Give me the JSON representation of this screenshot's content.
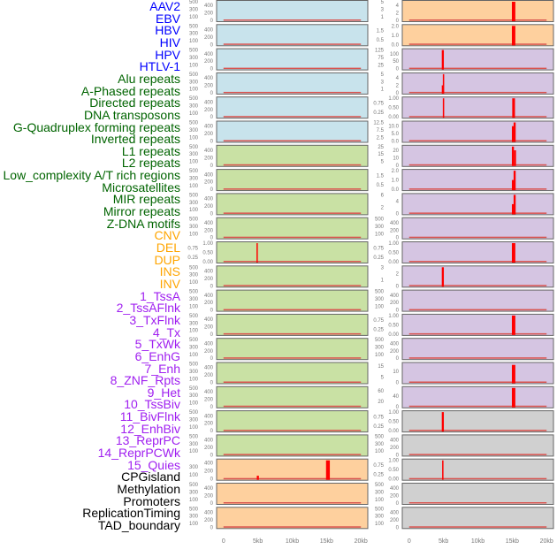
{
  "colors": {
    "blue": "#c8e3ec",
    "green": "#c9e1a4",
    "orange": "#fed09e",
    "purple": "#d5c5e2",
    "gray": "#d0d0d0",
    "bar": "#ff0000",
    "baseline": "#d9534f"
  },
  "label_colors": {
    "virus": "#0000ff",
    "repeat": "#006400",
    "sv": "#ffa500",
    "chromatin": "#a020f0",
    "other": "#000000"
  },
  "labels": [
    {
      "text": "AAV2",
      "group": "virus"
    },
    {
      "text": "EBV",
      "group": "virus"
    },
    {
      "text": "HBV",
      "group": "virus"
    },
    {
      "text": "HIV",
      "group": "virus"
    },
    {
      "text": "HPV",
      "group": "virus"
    },
    {
      "text": "HTLV-1",
      "group": "virus"
    },
    {
      "text": "Alu repeats",
      "group": "repeat"
    },
    {
      "text": "A-Phased repeats",
      "group": "repeat"
    },
    {
      "text": "Directed repeats",
      "group": "repeat"
    },
    {
      "text": "DNA transposons",
      "group": "repeat"
    },
    {
      "text": "G-Quadruplex forming repeats",
      "group": "repeat"
    },
    {
      "text": "Inverted repeats",
      "group": "repeat"
    },
    {
      "text": "L1 repeats",
      "group": "repeat"
    },
    {
      "text": "L2 repeats",
      "group": "repeat"
    },
    {
      "text": "Low_complexity A/T rich regions",
      "group": "repeat"
    },
    {
      "text": "Microsatellites",
      "group": "repeat"
    },
    {
      "text": "MIR repeats",
      "group": "repeat"
    },
    {
      "text": "Mirror repeats",
      "group": "repeat"
    },
    {
      "text": "Z-DNA motifs",
      "group": "repeat"
    },
    {
      "text": "CNV",
      "group": "sv"
    },
    {
      "text": "DEL",
      "group": "sv"
    },
    {
      "text": "DUP",
      "group": "sv"
    },
    {
      "text": "INS",
      "group": "sv"
    },
    {
      "text": "INV",
      "group": "sv"
    },
    {
      "text": "1_TssA",
      "group": "chromatin"
    },
    {
      "text": "2_TssAFlnk",
      "group": "chromatin"
    },
    {
      "text": "3_TxFlnk",
      "group": "chromatin"
    },
    {
      "text": "4_Tx",
      "group": "chromatin"
    },
    {
      "text": "5_TxWk",
      "group": "chromatin"
    },
    {
      "text": "6_EnhG",
      "group": "chromatin"
    },
    {
      "text": "7_Enh",
      "group": "chromatin"
    },
    {
      "text": "8_ZNF_Rpts",
      "group": "chromatin"
    },
    {
      "text": "9_Het",
      "group": "chromatin"
    },
    {
      "text": "10_TssBiv",
      "group": "chromatin"
    },
    {
      "text": "11_BivFlnk",
      "group": "chromatin"
    },
    {
      "text": "12_EnhBiv",
      "group": "chromatin"
    },
    {
      "text": "13_ReprPC",
      "group": "chromatin"
    },
    {
      "text": "14_ReprPCWk",
      "group": "chromatin"
    },
    {
      "text": "15_Quies",
      "group": "chromatin"
    },
    {
      "text": "CPGisland",
      "group": "other"
    },
    {
      "text": "Methylation",
      "group": "other"
    },
    {
      "text": "Promoters",
      "group": "other"
    },
    {
      "text": "ReplicationTiming",
      "group": "other"
    },
    {
      "text": "TAD_boundary",
      "group": "other"
    }
  ],
  "chart_data": {
    "type": "bar",
    "xlabel": "",
    "xlim": [
      -1,
      21
    ],
    "xticks": [
      0,
      5,
      10,
      15,
      20
    ],
    "xtick_labels": [
      "0",
      "5kb",
      "10kb",
      "15kb",
      "20kb"
    ],
    "baseline_range": [
      0,
      20
    ],
    "columns": [
      {
        "name": "left",
        "panels": [
          {
            "bg": "blue",
            "yticks": [
              "0",
              "100",
              "200",
              "300",
              "400",
              "500"
            ],
            "ymax": 500,
            "bars": []
          },
          {
            "bg": "blue",
            "yticks": [
              "0",
              "100",
              "200",
              "300",
              "400",
              "500"
            ],
            "ymax": 500,
            "bars": []
          },
          {
            "bg": "blue",
            "yticks": [
              "0",
              "100",
              "200",
              "300",
              "400",
              "500"
            ],
            "ymax": 500,
            "bars": []
          },
          {
            "bg": "blue",
            "yticks": [
              "0",
              "100",
              "200",
              "300",
              "400",
              "500"
            ],
            "ymax": 500,
            "bars": []
          },
          {
            "bg": "blue",
            "yticks": [
              "0",
              "100",
              "200",
              "300",
              "400",
              "500"
            ],
            "ymax": 500,
            "bars": []
          },
          {
            "bg": "blue",
            "yticks": [
              "0",
              "100",
              "200",
              "300",
              "400",
              "500"
            ],
            "ymax": 500,
            "bars": []
          },
          {
            "bg": "green",
            "yticks": [
              "0",
              "100",
              "200",
              "300",
              "400",
              "500"
            ],
            "ymax": 500,
            "bars": []
          },
          {
            "bg": "green",
            "yticks": [
              "0",
              "100",
              "200",
              "300",
              "400",
              "500"
            ],
            "ymax": 500,
            "bars": []
          },
          {
            "bg": "green",
            "yticks": [
              "0",
              "100",
              "200",
              "300",
              "400",
              "500"
            ],
            "ymax": 500,
            "bars": []
          },
          {
            "bg": "green",
            "yticks": [
              "0",
              "100",
              "200",
              "300",
              "400",
              "500"
            ],
            "ymax": 500,
            "bars": []
          },
          {
            "bg": "green",
            "yticks": [
              "0.00",
              "0.25",
              "0.50",
              "0.75",
              "1.00"
            ],
            "ymax": 1,
            "bars": [
              {
                "x": 4.9,
                "y": 1,
                "w": 0.15
              }
            ]
          },
          {
            "bg": "green",
            "yticks": [
              "0",
              "100",
              "200",
              "300",
              "400",
              "500"
            ],
            "ymax": 500,
            "bars": []
          },
          {
            "bg": "green",
            "yticks": [
              "0",
              "100",
              "200",
              "300",
              "400",
              "500"
            ],
            "ymax": 500,
            "bars": []
          },
          {
            "bg": "green",
            "yticks": [
              "0",
              "100",
              "200",
              "300",
              "400",
              "500"
            ],
            "ymax": 500,
            "bars": []
          },
          {
            "bg": "green",
            "yticks": [
              "0",
              "100",
              "200",
              "300",
              "400",
              "500"
            ],
            "ymax": 500,
            "bars": []
          },
          {
            "bg": "green",
            "yticks": [
              "0",
              "100",
              "200",
              "300",
              "400",
              "500"
            ],
            "ymax": 500,
            "bars": []
          },
          {
            "bg": "green",
            "yticks": [
              "0",
              "100",
              "200",
              "300",
              "400",
              "500"
            ],
            "ymax": 500,
            "bars": []
          },
          {
            "bg": "green",
            "yticks": [
              "0",
              "100",
              "200",
              "300",
              "400",
              "500"
            ],
            "ymax": 500,
            "bars": []
          },
          {
            "bg": "green",
            "yticks": [
              "0",
              "100",
              "200",
              "300",
              "400",
              "500"
            ],
            "ymax": 500,
            "bars": []
          },
          {
            "bg": "orange",
            "yticks": [
              "0",
              "100",
              "200",
              "300",
              "400"
            ],
            "ymax": 460,
            "bars": [
              {
                "x": 5,
                "y": 80,
                "w": 0.3
              },
              {
                "x": 15.2,
                "y": 460,
                "w": 0.55
              }
            ]
          },
          {
            "bg": "orange",
            "yticks": [
              "0",
              "100",
              "200",
              "300",
              "400",
              "500"
            ],
            "ymax": 500,
            "bars": []
          },
          {
            "bg": "orange",
            "yticks": [
              "0",
              "100",
              "200",
              "300",
              "400",
              "500"
            ],
            "ymax": 500,
            "bars": []
          }
        ]
      },
      {
        "name": "right",
        "panels": [
          {
            "bg": "orange",
            "yticks": [
              "0",
              "1",
              "2",
              "3",
              "4",
              "5"
            ],
            "ymax": 5,
            "bars": [
              {
                "x": 15.2,
                "y": 5,
                "w": 0.5
              }
            ]
          },
          {
            "bg": "orange",
            "yticks": [
              "0.0",
              "0.5",
              "1.0",
              "1.5",
              "2.0"
            ],
            "ymax": 2,
            "bars": [
              {
                "x": 15.2,
                "y": 2,
                "w": 0.5
              }
            ]
          },
          {
            "bg": "purple",
            "yticks": [
              "0",
              "25",
              "50",
              "75",
              "100",
              "125"
            ],
            "ymax": 125,
            "bars": [
              {
                "x": 4.9,
                "y": 125,
                "w": 0.3
              }
            ]
          },
          {
            "bg": "purple",
            "yticks": [
              "0",
              "1",
              "2",
              "3",
              "4",
              "5"
            ],
            "ymax": 5,
            "bars": [
              {
                "x": 4.85,
                "y": 2,
                "w": 0.2
              },
              {
                "x": 5,
                "y": 5,
                "w": 0.2
              }
            ]
          },
          {
            "bg": "purple",
            "yticks": [
              "0.00",
              "0.25",
              "0.50",
              "0.75",
              "1.00"
            ],
            "ymax": 1,
            "bars": [
              {
                "x": 5,
                "y": 1,
                "w": 0.2
              },
              {
                "x": 15.2,
                "y": 1,
                "w": 0.4
              }
            ]
          },
          {
            "bg": "purple",
            "yticks": [
              "0.0",
              "2.5",
              "5.0",
              "7.5",
              "10.0",
              "12.5"
            ],
            "ymax": 12.5,
            "bars": [
              {
                "x": 15.1,
                "y": 10,
                "w": 0.3
              },
              {
                "x": 15.35,
                "y": 12.5,
                "w": 0.3
              }
            ]
          },
          {
            "bg": "purple",
            "yticks": [
              "0",
              "5",
              "10",
              "15",
              "20",
              "25"
            ],
            "ymax": 25,
            "bars": [
              {
                "x": 15.1,
                "y": 25,
                "w": 0.3
              },
              {
                "x": 15.4,
                "y": 20,
                "w": 0.3
              }
            ]
          },
          {
            "bg": "purple",
            "yticks": [
              "0.0",
              "0.5",
              "1.0",
              "1.5",
              "2.0"
            ],
            "ymax": 2,
            "bars": [
              {
                "x": 15.1,
                "y": 1,
                "w": 0.3
              },
              {
                "x": 15.35,
                "y": 2,
                "w": 0.3
              }
            ]
          },
          {
            "bg": "purple",
            "yticks": [
              "0",
              "2",
              "4",
              "6"
            ],
            "ymax": 6,
            "bars": [
              {
                "x": 15.1,
                "y": 3,
                "w": 0.3
              },
              {
                "x": 15.35,
                "y": 6,
                "w": 0.3
              }
            ]
          },
          {
            "bg": "purple",
            "yticks": [
              "0",
              "100",
              "200",
              "300",
              "400",
              "500"
            ],
            "ymax": 500,
            "bars": []
          },
          {
            "bg": "purple",
            "yticks": [
              "0.00",
              "0.25",
              "0.50",
              "0.75",
              "1.00"
            ],
            "ymax": 1,
            "bars": [
              {
                "x": 15.2,
                "y": 1,
                "w": 0.5
              }
            ]
          },
          {
            "bg": "purple",
            "yticks": [
              "0",
              "1",
              "2",
              "3"
            ],
            "ymax": 3,
            "bars": [
              {
                "x": 4.9,
                "y": 3,
                "w": 0.3
              }
            ]
          },
          {
            "bg": "purple",
            "yticks": [
              "0",
              "100",
              "200",
              "300",
              "400",
              "500"
            ],
            "ymax": 500,
            "bars": []
          },
          {
            "bg": "purple",
            "yticks": [
              "0.00",
              "0.25",
              "0.50",
              "0.75",
              "1.00"
            ],
            "ymax": 1,
            "bars": [
              {
                "x": 15.2,
                "y": 1,
                "w": 0.5
              }
            ]
          },
          {
            "bg": "purple",
            "yticks": [
              "0",
              "100",
              "200",
              "300",
              "400",
              "500"
            ],
            "ymax": 500,
            "bars": []
          },
          {
            "bg": "purple",
            "yticks": [
              "0",
              "5",
              "10",
              "15"
            ],
            "ymax": 17,
            "bars": [
              {
                "x": 15.2,
                "y": 16,
                "w": 0.5
              }
            ]
          },
          {
            "bg": "purple",
            "yticks": [
              "0",
              "20",
              "40",
              "60"
            ],
            "ymax": 70,
            "bars": [
              {
                "x": 15.2,
                "y": 70,
                "w": 0.5
              }
            ]
          },
          {
            "bg": "gray",
            "yticks": [
              "0.00",
              "0.25",
              "0.50",
              "0.75",
              "1.00"
            ],
            "ymax": 1,
            "bars": [
              {
                "x": 4.9,
                "y": 1,
                "w": 0.3
              }
            ]
          },
          {
            "bg": "gray",
            "yticks": [
              "0",
              "100",
              "200",
              "300",
              "400",
              "500"
            ],
            "ymax": 500,
            "bars": []
          },
          {
            "bg": "gray",
            "yticks": [
              "0.00",
              "0.25",
              "0.50",
              "0.75",
              "1.00"
            ],
            "ymax": 1,
            "bars": [
              {
                "x": 4.9,
                "y": 1,
                "w": 0.15
              }
            ]
          },
          {
            "bg": "gray",
            "yticks": [
              "0",
              "100",
              "200",
              "300",
              "400",
              "500"
            ],
            "ymax": 500,
            "bars": []
          },
          {
            "bg": "gray",
            "yticks": [
              "0",
              "100",
              "200",
              "300",
              "400",
              "500"
            ],
            "ymax": 500,
            "bars": []
          }
        ]
      }
    ]
  }
}
